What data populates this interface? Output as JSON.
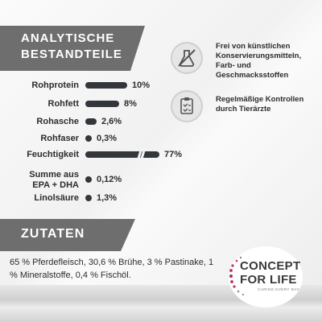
{
  "analysis": {
    "title_line1": "ANALYTISCHE",
    "title_line2": "BESTANDTEILE",
    "items": [
      {
        "label": "Rohprotein",
        "value": "10%",
        "fraction": 0.1
      },
      {
        "label": "Rohfett",
        "value": "8%",
        "fraction": 0.08
      },
      {
        "label": "Rohasche",
        "value": "2,6%",
        "fraction": 0.026
      },
      {
        "label": "Rohfaser",
        "value": "0,3%",
        "fraction": 0.003
      },
      {
        "label": "Feuchtigkeit",
        "value": "77%",
        "fraction": 0.77
      },
      {
        "label_line1": "Summe aus",
        "label_line2": "EPA + DHA",
        "value": "0,12%",
        "fraction": 0.0012
      },
      {
        "label": "Linolsäure",
        "value": "1,3%",
        "fraction": 0.013
      }
    ]
  },
  "claims": [
    {
      "icon": "flask-crossed-icon",
      "text": "Frei von künstlichen Konservierungsmitteln, Farb- und Geschmacksstoffen"
    },
    {
      "icon": "clipboard-check-icon",
      "text": "Regelmäßige Kontrollen durch Tierärzte"
    }
  ],
  "ingredients": {
    "title": "ZUTATEN",
    "text": "65 % Pferdefleisch, 30,6 % Brühe, 3 % Pastinake, 1 % Mineralstoffe, 0,4 % Fischöl."
  },
  "logo": {
    "line1": "CONCEPT",
    "line2": "FOR LIFE",
    "tagline": "CARING EVERY DAY"
  },
  "colors": {
    "banner": "#6e6e6e",
    "bar": "#33373b",
    "text": "#2d2d2d"
  }
}
